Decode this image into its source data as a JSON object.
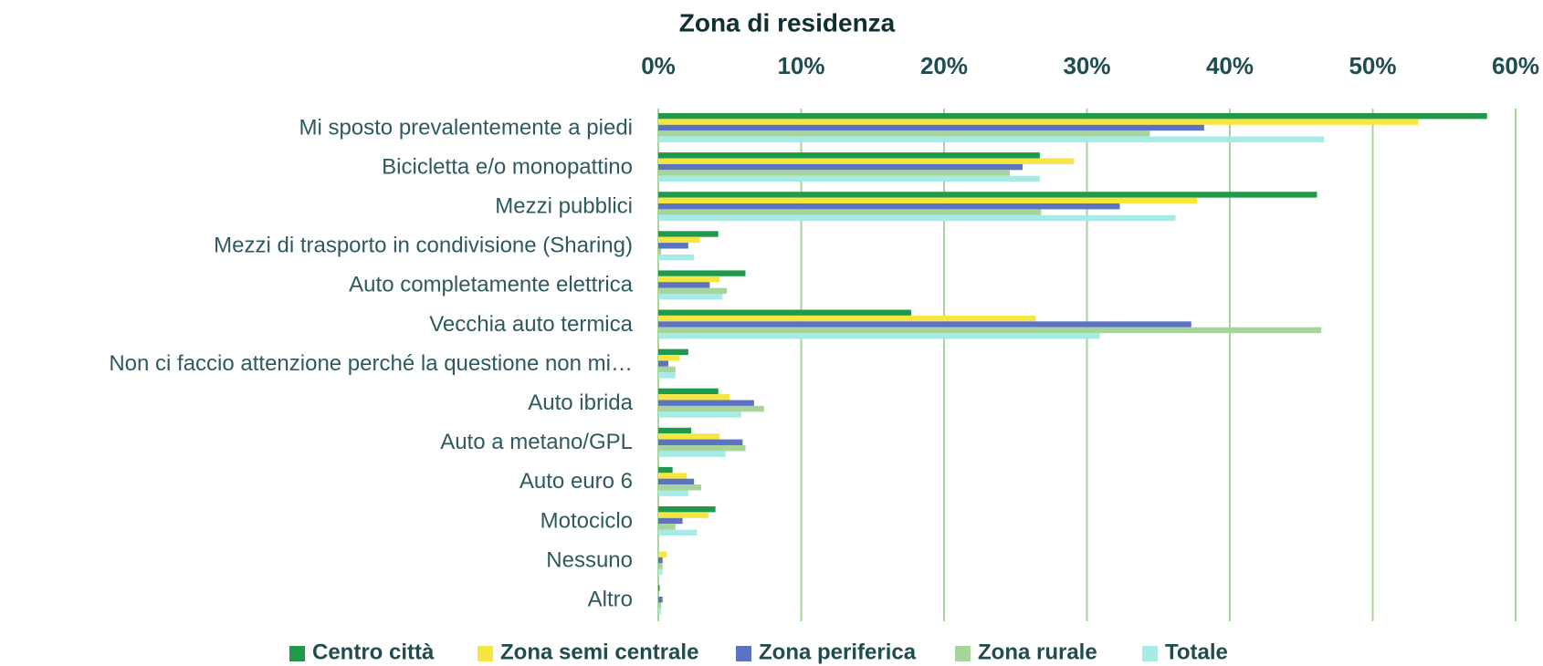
{
  "chart_data": {
    "type": "hbar",
    "title": "Zona di residenza",
    "categories": [
      "Mi sposto prevalentemente a piedi",
      "Bicicletta e/o monopattino",
      "Mezzi pubblici",
      "Mezzi di trasporto in condivisione (Sharing)",
      "Auto completamente elettrica",
      "Vecchia auto termica",
      "Non ci faccio attenzione perché la questione non mi…",
      "Auto ibrida",
      "Auto a metano/GPL",
      "Auto euro 6",
      "Motociclo",
      "Nessuno",
      "Altro"
    ],
    "series": [
      {
        "name": "Centro città",
        "color": "#1e9a4a",
        "values": [
          58.0,
          26.7,
          46.1,
          4.2,
          6.1,
          17.7,
          2.1,
          4.2,
          2.3,
          1.0,
          4.0,
          0,
          0.1
        ]
      },
      {
        "name": "Zona semi centrale",
        "color": "#f5e642",
        "values": [
          53.2,
          29.1,
          37.7,
          2.9,
          4.3,
          26.4,
          1.5,
          5.0,
          4.3,
          2.0,
          3.5,
          0.6,
          0
        ]
      },
      {
        "name": "Zona periferica",
        "color": "#5b73c0",
        "values": [
          38.2,
          25.5,
          32.3,
          2.1,
          3.6,
          37.3,
          0.7,
          6.7,
          5.9,
          2.5,
          1.7,
          0.3,
          0.3
        ]
      },
      {
        "name": "Zona rurale",
        "color": "#a7d49a",
        "values": [
          34.4,
          24.6,
          26.8,
          0.2,
          4.8,
          46.4,
          1.2,
          7.4,
          6.1,
          3.0,
          1.2,
          0.3,
          0.2
        ]
      },
      {
        "name": "Totale",
        "color": "#a6ebe6",
        "values": [
          46.6,
          26.7,
          36.2,
          2.5,
          4.5,
          30.9,
          1.2,
          5.8,
          4.7,
          2.1,
          2.7,
          0.3,
          0.2
        ]
      }
    ],
    "xlim": [
      0,
      60
    ],
    "xticks": [
      {
        "value": 0,
        "label": "0%"
      },
      {
        "value": 10,
        "label": "10%"
      },
      {
        "value": 20,
        "label": "20%"
      },
      {
        "value": 30,
        "label": "30%"
      },
      {
        "value": 40,
        "label": "40%"
      },
      {
        "value": 50,
        "label": "50%"
      },
      {
        "value": 60,
        "label": "60%"
      }
    ],
    "grid": true,
    "legend": "bottom"
  }
}
